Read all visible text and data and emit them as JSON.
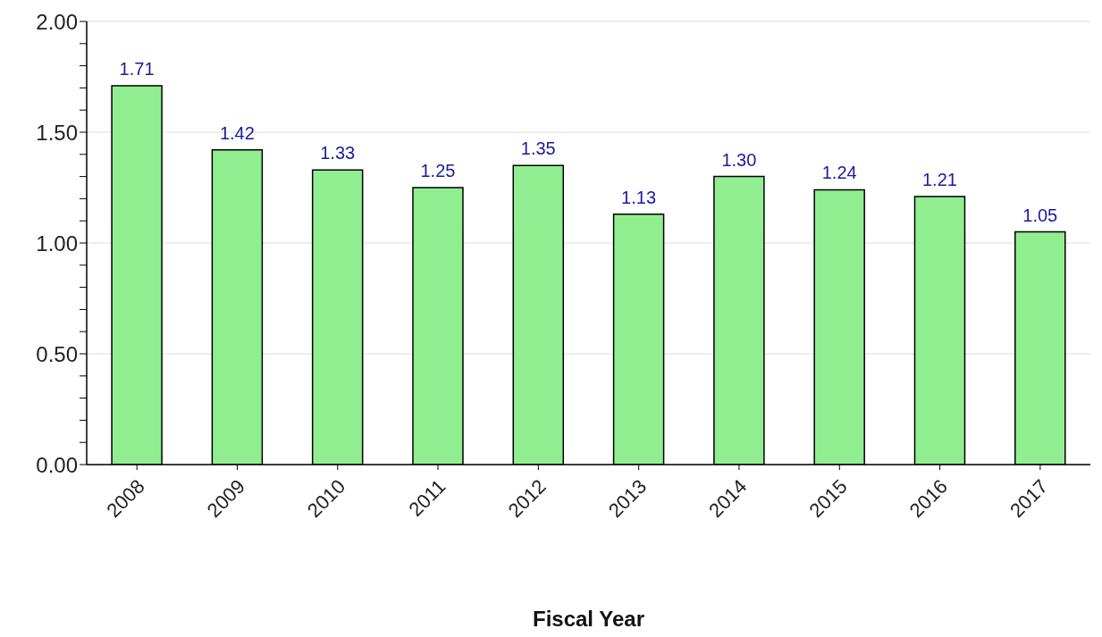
{
  "chart_data": {
    "type": "bar",
    "xlabel": "Fiscal Year",
    "categories": [
      "2008",
      "2009",
      "2010",
      "2011",
      "2012",
      "2013",
      "2014",
      "2015",
      "2016",
      "2017"
    ],
    "values": [
      1.71,
      1.42,
      1.33,
      1.25,
      1.35,
      1.13,
      1.3,
      1.24,
      1.21,
      1.05
    ],
    "color": "#90ee90",
    "ylim": [
      0,
      2
    ],
    "yticks": [
      {
        "value": 0,
        "label": "0.00"
      },
      {
        "value": 0.1,
        "label": null
      },
      {
        "value": 0.2,
        "label": null
      },
      {
        "value": 0.3,
        "label": null
      },
      {
        "value": 0.4,
        "label": null
      },
      {
        "value": 0.5,
        "label": "0.50"
      },
      {
        "value": 0.6,
        "label": null
      },
      {
        "value": 0.7,
        "label": null
      },
      {
        "value": 0.8,
        "label": null
      },
      {
        "value": 0.9,
        "label": null
      },
      {
        "value": 1,
        "label": "1.00"
      },
      {
        "value": 1.1,
        "label": null
      },
      {
        "value": 1.2,
        "label": null
      },
      {
        "value": 1.3,
        "label": null
      },
      {
        "value": 1.4,
        "label": null
      },
      {
        "value": 1.5,
        "label": "1.50"
      },
      {
        "value": 1.6,
        "label": null
      },
      {
        "value": 1.7,
        "label": null
      },
      {
        "value": 1.8,
        "label": null
      },
      {
        "value": 1.9,
        "label": null
      },
      {
        "value": 2,
        "label": "2.00"
      }
    ],
    "value_labels": [
      "1.71",
      "1.42",
      "1.33",
      "1.25",
      "1.35",
      "1.13",
      "1.30",
      "1.24",
      "1.21",
      "1.05"
    ],
    "grid": "y"
  }
}
